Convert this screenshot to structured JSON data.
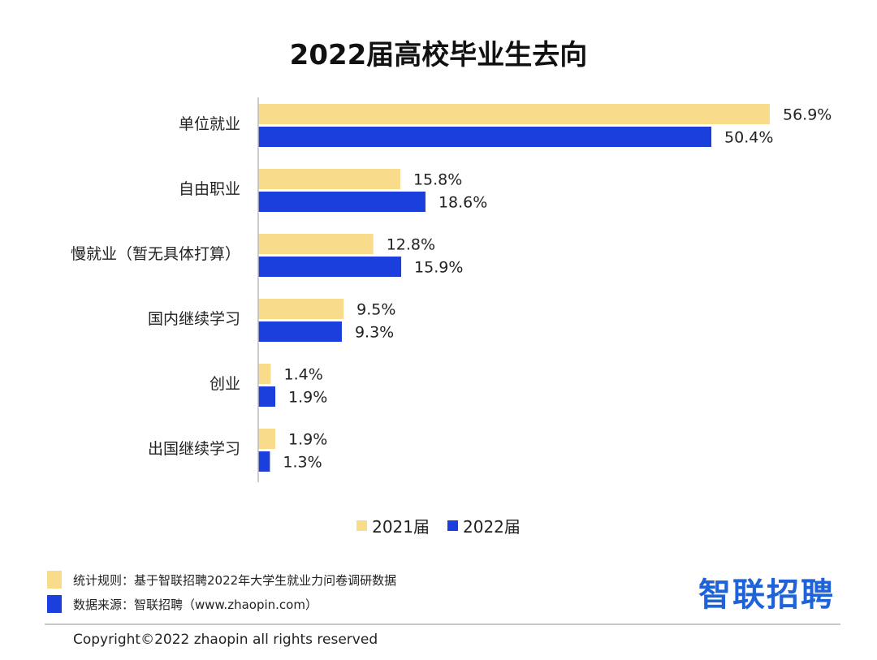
{
  "chart_data": {
    "type": "bar",
    "orientation": "horizontal",
    "title": "2022届高校毕业生去向",
    "categories": [
      "单位就业",
      "自由职业",
      "慢就业（暂无具体打算）",
      "国内继续学习",
      "创业",
      "出国继续学习"
    ],
    "series": [
      {
        "name": "2021届",
        "values": [
          56.9,
          15.8,
          12.8,
          9.5,
          1.4,
          1.9
        ],
        "labels": [
          "56.9%",
          "15.8%",
          "12.8%",
          "9.5%",
          "1.4%",
          "1.9%"
        ],
        "color": "#f8dc8c"
      },
      {
        "name": "2022届",
        "values": [
          50.4,
          18.6,
          15.9,
          9.3,
          1.9,
          1.3
        ],
        "labels": [
          "50.4%",
          "18.6%",
          "15.9%",
          "9.3%",
          "1.9%",
          "1.3%"
        ],
        "color": "#1a3fdc"
      }
    ],
    "xlim": [
      0,
      60
    ],
    "grid": false,
    "legend_position": "bottom-center"
  },
  "notes": [
    {
      "label": "统计规则：基于智联招聘2022年大学生就业力问卷调研数据",
      "color": "#f8dc8c"
    },
    {
      "label": "数据来源：智联招聘（www.zhaopin.com）",
      "color": "#1a3fdc"
    }
  ],
  "brand": {
    "logo_text": "智联招聘",
    "color": "#1f63d9"
  },
  "footer": {
    "copyright": "Copyright©2022 zhaopin all rights reserved"
  }
}
